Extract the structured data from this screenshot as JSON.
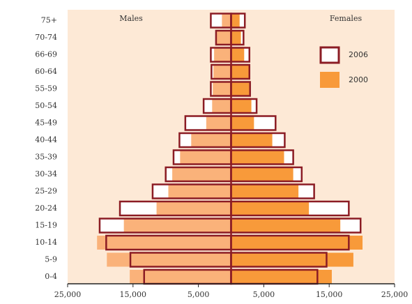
{
  "chart_data": {
    "type": "pyramid",
    "male_label": "Males",
    "female_label": "Females",
    "categories": [
      "0-4",
      "5-9",
      "10-14",
      "15-19",
      "20-24",
      "25-29",
      "30-34",
      "35-39",
      "40-44",
      "45-49",
      "50-54",
      "55-59",
      "60-64",
      "66-69",
      "70-74",
      "75+"
    ],
    "series": [
      {
        "name": "2006",
        "style": "outline",
        "color": "#8b1c24",
        "males": [
          -13300,
          -15400,
          -19100,
          -20100,
          -17000,
          -12000,
          -10000,
          -8800,
          -7900,
          -7000,
          -4200,
          -3100,
          -3000,
          -3100,
          -2300,
          -3100
        ],
        "females": [
          13200,
          14600,
          18000,
          19800,
          18000,
          12700,
          10800,
          9500,
          8200,
          6800,
          3900,
          2900,
          2800,
          2800,
          1900,
          2100
        ]
      },
      {
        "name": "2000",
        "style": "fill",
        "color": "#f89a3a",
        "male_color": "#fab27a",
        "males": [
          -15500,
          -19000,
          -20500,
          -16400,
          -11400,
          -9600,
          -9000,
          -7800,
          -6100,
          -3800,
          -2900,
          -2800,
          -2700,
          -2600,
          -2200,
          -1400
        ],
        "females": [
          15400,
          18700,
          20100,
          16700,
          11900,
          10300,
          9500,
          8100,
          6300,
          3500,
          3100,
          2900,
          2800,
          2000,
          1500,
          1300
        ]
      }
    ],
    "xlim": [
      -25000,
      25000
    ],
    "xticks": [
      {
        "value": -25000,
        "label": "25,000"
      },
      {
        "value": -15000,
        "label": "15,000"
      },
      {
        "value": -5000,
        "label": "5,000"
      },
      {
        "value": 5000,
        "label": "5,000"
      },
      {
        "value": 15000,
        "label": "15,000"
      },
      {
        "value": 25000,
        "label": "25,000"
      }
    ],
    "background": "#fde9d6"
  }
}
